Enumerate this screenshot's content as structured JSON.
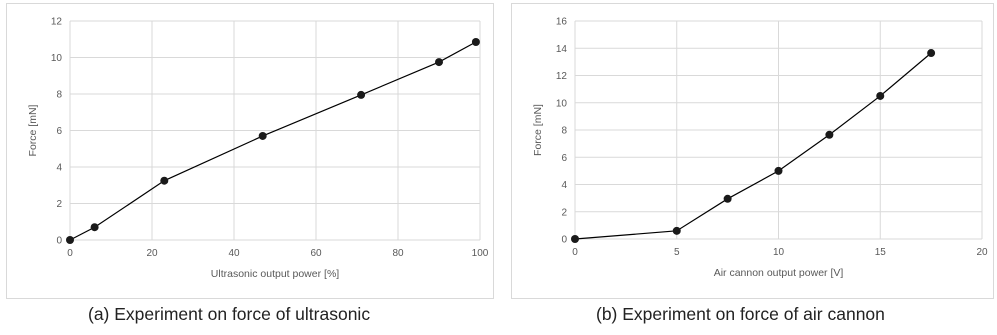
{
  "captions": {
    "a": "(a)  Experiment on force of ultrasonic",
    "b": "(b)  Experiment on force of air cannon"
  },
  "colors": {
    "line": "#000000",
    "marker": "#1a1a1a",
    "grid": "#d9d9d9",
    "text": "#595959",
    "border": "#d9d9d9"
  },
  "chart_data": [
    {
      "type": "line",
      "title": "",
      "xlabel": "Ultrasonic output power [%]",
      "ylabel": "Force [mN]",
      "xlim": [
        0,
        100
      ],
      "ylim": [
        0,
        12
      ],
      "xticks": [
        0,
        20,
        40,
        60,
        80,
        100
      ],
      "yticks": [
        0,
        2,
        4,
        6,
        8,
        10,
        12
      ],
      "grid": true,
      "legend": "none",
      "series": [
        {
          "x": [
            0,
            6,
            23,
            47,
            71,
            90,
            99
          ],
          "y": [
            0,
            0.7,
            3.25,
            5.7,
            7.95,
            9.75,
            10.85
          ]
        }
      ]
    },
    {
      "type": "line",
      "title": "",
      "xlabel": "Air cannon output power [V]",
      "ylabel": "Force [mN]",
      "xlim": [
        0,
        20
      ],
      "ylim": [
        0,
        16
      ],
      "xticks": [
        0,
        5,
        10,
        15,
        20
      ],
      "yticks": [
        0,
        2,
        4,
        6,
        8,
        10,
        12,
        14,
        16
      ],
      "grid": true,
      "legend": "none",
      "series": [
        {
          "x": [
            0,
            5,
            7.5,
            10,
            12.5,
            15,
            17.5
          ],
          "y": [
            0,
            0.6,
            2.95,
            5.0,
            7.65,
            10.5,
            13.65
          ]
        }
      ]
    }
  ]
}
